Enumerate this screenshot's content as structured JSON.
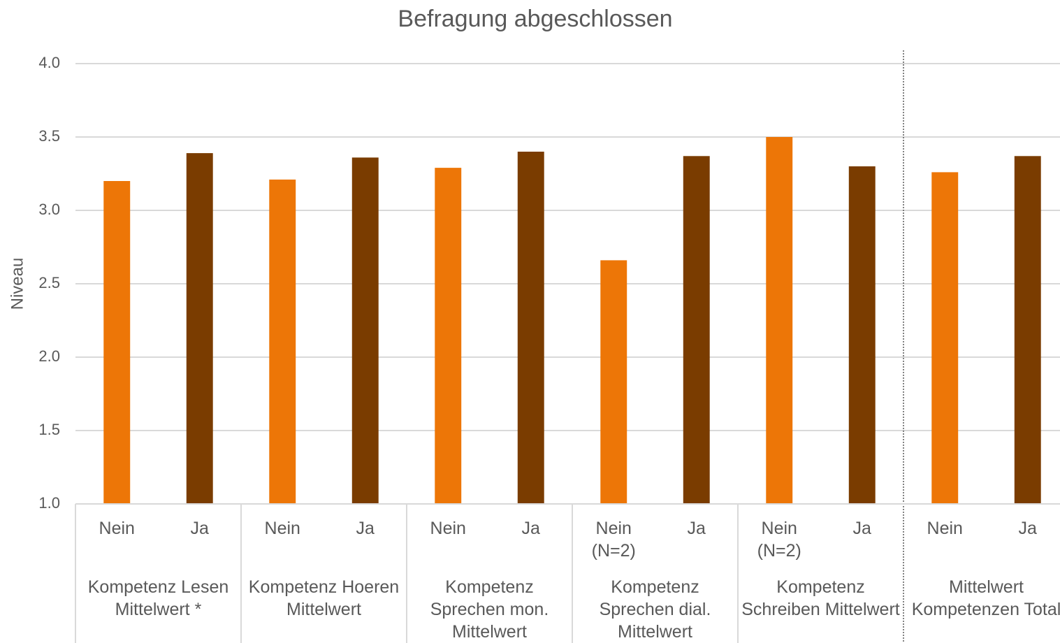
{
  "chart_data": {
    "type": "bar",
    "title": "Befragung abgeschlossen",
    "y_label": "Niveau",
    "ylim": [
      1,
      4
    ],
    "yticks": [
      {
        "value": 1,
        "label": "1.0"
      },
      1.5,
      {
        "value": 2,
        "label": "2.0"
      },
      2.5,
      {
        "value": 3,
        "label": "3.0"
      },
      3.5,
      {
        "value": 4,
        "label": "4.0"
      }
    ],
    "grid": true,
    "colors": [
      "#ED7607",
      "#7A3C00"
    ],
    "groups": [
      {
        "label": "Kompetenz Lesen Mittelwert *",
        "categories": [
          "Nein",
          "Ja"
        ],
        "values": [
          3.2,
          3.39
        ]
      },
      {
        "label": "Kompetenz Hoeren Mittelwert",
        "categories": [
          "Nein",
          "Ja"
        ],
        "values": [
          3.21,
          3.36
        ]
      },
      {
        "label": "Kompetenz Sprechen mon. Mittelwert",
        "categories": [
          "Nein",
          "Ja"
        ],
        "values": [
          3.29,
          3.4
        ]
      },
      {
        "label": "Kompetenz Sprechen dial. Mittelwert",
        "categories": [
          "Nein (N=2)",
          "Ja"
        ],
        "values": [
          2.66,
          3.37
        ]
      },
      {
        "label": "Kompetenz Schreiben Mittelwert",
        "categories": [
          "Nein (N=2)",
          "Ja"
        ],
        "values": [
          3.5,
          3.3
        ]
      },
      {
        "label": "Mittelwert Kompetenzen Total",
        "categories": [
          "Nein",
          "Ja"
        ],
        "values": [
          3.26,
          3.37
        ]
      }
    ]
  }
}
